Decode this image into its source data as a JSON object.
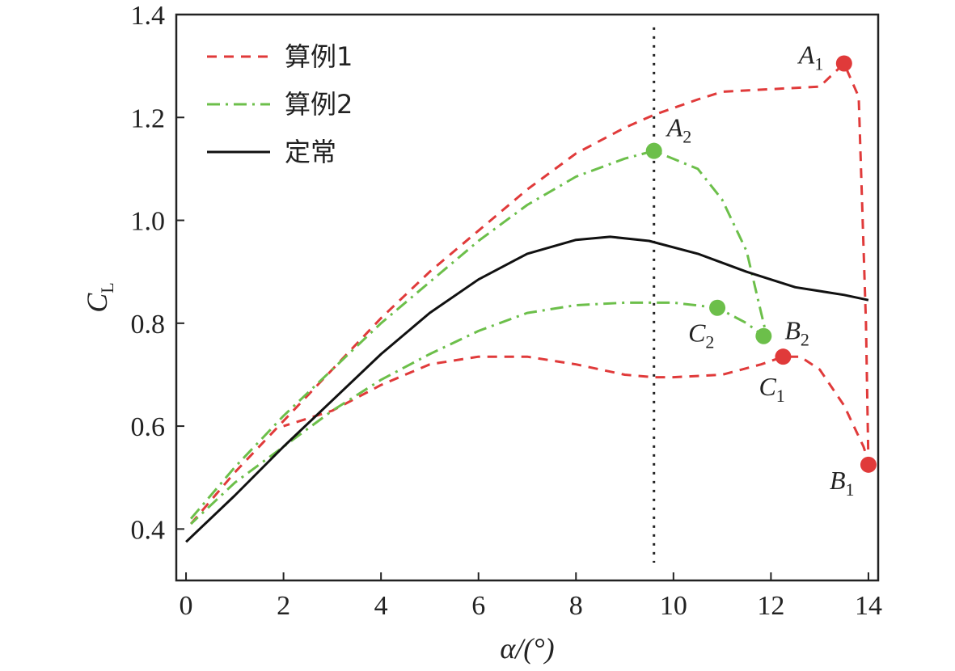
{
  "chart_data": {
    "type": "line",
    "xlabel": "α/(°)",
    "ylabel": "C_L",
    "ylabel_main": "C",
    "ylabel_sub": "L",
    "xlim": [
      -0.2,
      14.2
    ],
    "ylim": [
      0.3,
      1.4
    ],
    "xticks": [
      "0",
      "2",
      "4",
      "6",
      "8",
      "10",
      "12",
      "14"
    ],
    "yticks": [
      "0.4",
      "0.6",
      "0.8",
      "1.0",
      "1.2",
      "1.4"
    ],
    "xtick_values": [
      0,
      2,
      4,
      6,
      8,
      10,
      12,
      14
    ],
    "ytick_values": [
      0.4,
      0.6,
      0.8,
      1.0,
      1.2,
      1.4
    ],
    "grid": false,
    "legend_placement": "top-left",
    "reference_line_x": 9.6,
    "series": [
      {
        "name": "算例1",
        "color": "#e03a3a",
        "style": "dashed",
        "x": [
          0.1,
          1.0,
          2.0,
          3.0,
          4.0,
          5.0,
          6.0,
          7.0,
          8.0,
          9.0,
          9.6,
          10.5,
          11.0,
          12.0,
          13.0,
          13.5,
          13.8,
          13.95,
          14.0,
          13.9,
          13.5,
          13.0,
          12.6,
          12.25,
          11.8,
          11.0,
          10.0,
          9.6,
          9.0,
          8.0,
          7.0,
          6.0,
          5.0,
          4.0,
          3.0,
          2.0
        ],
        "y": [
          0.41,
          0.51,
          0.61,
          0.71,
          0.81,
          0.9,
          0.98,
          1.06,
          1.13,
          1.18,
          1.205,
          1.235,
          1.25,
          1.255,
          1.26,
          1.305,
          1.24,
          0.8,
          0.53,
          0.56,
          0.64,
          0.71,
          0.735,
          0.735,
          0.72,
          0.7,
          0.695,
          0.695,
          0.7,
          0.72,
          0.735,
          0.735,
          0.72,
          0.68,
          0.63,
          0.6
        ],
        "points": [
          {
            "label_main": "A",
            "label_sub": "1",
            "x": 13.5,
            "y": 1.305
          },
          {
            "label_main": "B",
            "label_sub": "1",
            "x": 14.0,
            "y": 0.525
          },
          {
            "label_main": "C",
            "label_sub": "1",
            "x": 12.25,
            "y": 0.735
          }
        ]
      },
      {
        "name": "算例2",
        "color": "#6cbf4a",
        "style": "dashdot",
        "x": [
          0.1,
          1.0,
          2.0,
          3.0,
          4.0,
          5.0,
          6.0,
          7.0,
          8.0,
          9.0,
          9.6,
          10.5,
          11.0,
          11.5,
          11.8,
          11.9,
          11.85,
          11.5,
          10.9,
          10.0,
          9.6,
          9.0,
          8.0,
          7.0,
          6.0,
          5.0,
          4.0,
          3.0,
          2.0,
          1.0,
          0.1
        ],
        "y": [
          0.42,
          0.52,
          0.62,
          0.71,
          0.8,
          0.88,
          0.96,
          1.03,
          1.085,
          1.12,
          1.135,
          1.1,
          1.04,
          0.94,
          0.82,
          0.78,
          0.775,
          0.8,
          0.83,
          0.84,
          0.84,
          0.84,
          0.835,
          0.82,
          0.785,
          0.74,
          0.69,
          0.63,
          0.56,
          0.49,
          0.41
        ],
        "points": [
          {
            "label_main": "A",
            "label_sub": "2",
            "x": 9.6,
            "y": 1.135
          },
          {
            "label_main": "B",
            "label_sub": "2",
            "x": 11.85,
            "y": 0.775
          },
          {
            "label_main": "C",
            "label_sub": "2",
            "x": 10.9,
            "y": 0.83
          }
        ]
      },
      {
        "name": "定常",
        "color": "#111111",
        "style": "solid",
        "x": [
          0.0,
          1.0,
          2.0,
          3.0,
          4.0,
          5.0,
          6.0,
          7.0,
          8.0,
          8.7,
          9.5,
          10.5,
          11.5,
          12.5,
          13.5,
          14.0
        ],
        "y": [
          0.375,
          0.465,
          0.56,
          0.65,
          0.74,
          0.82,
          0.885,
          0.935,
          0.962,
          0.968,
          0.96,
          0.935,
          0.9,
          0.87,
          0.855,
          0.845
        ],
        "points": []
      }
    ]
  }
}
